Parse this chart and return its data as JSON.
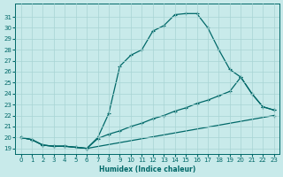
{
  "xlabel": "Humidex (Indice chaleur)",
  "bg_color": "#c8eaea",
  "grid_color": "#a8d4d4",
  "line_color": "#006868",
  "marker": "+",
  "xlim": [
    -0.5,
    23.5
  ],
  "ylim": [
    18.5,
    32.2
  ],
  "xticks": [
    0,
    1,
    2,
    3,
    4,
    5,
    6,
    7,
    8,
    9,
    10,
    11,
    12,
    13,
    14,
    15,
    16,
    17,
    18,
    19,
    20,
    21,
    22,
    23
  ],
  "yticks": [
    19,
    20,
    21,
    22,
    23,
    24,
    25,
    26,
    27,
    28,
    29,
    30,
    31
  ],
  "line1_x": [
    0,
    1,
    2,
    3,
    4,
    5,
    6,
    7,
    8,
    9,
    10,
    11,
    12,
    13,
    14,
    15,
    16,
    17,
    18,
    19,
    20,
    21,
    22,
    23
  ],
  "line1_y": [
    20.0,
    19.8,
    19.3,
    19.2,
    19.2,
    19.1,
    19.0,
    20.0,
    22.2,
    26.5,
    27.5,
    28.0,
    29.7,
    30.2,
    31.2,
    31.3,
    31.3,
    30.0,
    28.0,
    26.2,
    25.5,
    24.0,
    22.8,
    22.5
  ],
  "line2_x": [
    0,
    1,
    2,
    3,
    4,
    5,
    6,
    7,
    8,
    9,
    10,
    11,
    12,
    13,
    14,
    15,
    16,
    17,
    18,
    19,
    20,
    21,
    22,
    23
  ],
  "line2_y": [
    20.0,
    19.8,
    19.3,
    19.2,
    19.2,
    19.1,
    19.0,
    19.9,
    20.3,
    20.6,
    21.0,
    21.3,
    21.7,
    22.0,
    22.4,
    22.7,
    23.1,
    23.4,
    23.8,
    24.2,
    25.5,
    24.0,
    22.8,
    22.5
  ],
  "line3_x": [
    0,
    1,
    2,
    3,
    4,
    5,
    6,
    23
  ],
  "line3_y": [
    20.0,
    19.8,
    19.3,
    19.2,
    19.2,
    19.1,
    19.0,
    22.0
  ]
}
